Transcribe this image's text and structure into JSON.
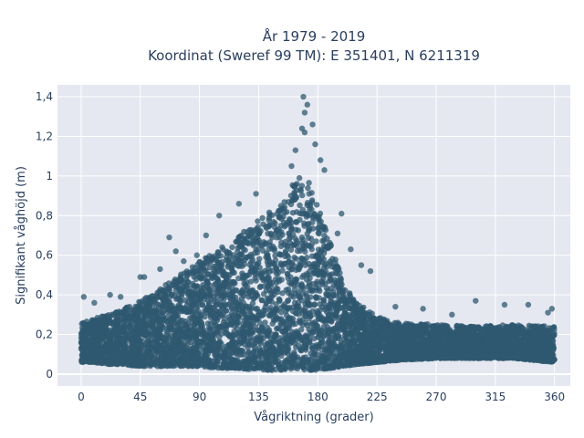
{
  "chart_data": {
    "type": "scatter",
    "title": "År 1979 - 2019",
    "subtitle": "Koordinat (Sweref 99 TM): E 351401, N 6211319",
    "xlabel": "Vågriktning (grader)",
    "ylabel": "Signifikant våghöjd (m)",
    "xlim": [
      -18,
      372
    ],
    "ylim": [
      -0.06,
      1.46
    ],
    "xticks": [
      0,
      45,
      90,
      135,
      180,
      225,
      270,
      315,
      360
    ],
    "xtick_labels": [
      "0",
      "45",
      "90",
      "135",
      "180",
      "225",
      "270",
      "315",
      "360"
    ],
    "yticks": [
      0,
      0.2,
      0.4,
      0.6,
      0.8,
      1.0,
      1.2,
      1.4
    ],
    "ytick_labels": [
      "0",
      "0,2",
      "0,4",
      "0,6",
      "0,8",
      "1",
      "1,2",
      "1,4"
    ],
    "grid": true,
    "marker_color": "#2f5870",
    "background_color": "#e5e8f0",
    "envelope": {
      "x": [
        0,
        10,
        20,
        30,
        45,
        60,
        75,
        90,
        105,
        120,
        135,
        150,
        160,
        165,
        170,
        175,
        180,
        190,
        200,
        210,
        225,
        240,
        270,
        300,
        330,
        360
      ],
      "upper": [
        0.26,
        0.28,
        0.3,
        0.33,
        0.37,
        0.43,
        0.5,
        0.57,
        0.63,
        0.7,
        0.78,
        0.85,
        0.95,
        1.0,
        1.0,
        0.95,
        0.85,
        0.65,
        0.45,
        0.36,
        0.29,
        0.26,
        0.25,
        0.24,
        0.25,
        0.24
      ],
      "lower": [
        0.06,
        0.06,
        0.05,
        0.05,
        0.04,
        0.04,
        0.04,
        0.04,
        0.03,
        0.03,
        0.02,
        0.02,
        0.02,
        0.02,
        0.02,
        0.02,
        0.02,
        0.03,
        0.04,
        0.05,
        0.06,
        0.07,
        0.08,
        0.08,
        0.08,
        0.06
      ]
    },
    "outliers": [
      [
        169,
        1.4
      ],
      [
        172,
        1.36
      ],
      [
        170,
        1.32
      ],
      [
        176,
        1.26
      ],
      [
        168,
        1.24
      ],
      [
        170,
        1.22
      ],
      [
        178,
        1.16
      ],
      [
        163,
        1.13
      ],
      [
        182,
        1.08
      ],
      [
        185,
        1.03
      ],
      [
        160,
        1.05
      ],
      [
        133,
        0.91
      ],
      [
        120,
        0.86
      ],
      [
        105,
        0.8
      ],
      [
        95,
        0.7
      ],
      [
        67,
        0.69
      ],
      [
        88,
        0.6
      ],
      [
        72,
        0.62
      ],
      [
        78,
        0.57
      ],
      [
        60,
        0.53
      ],
      [
        45,
        0.49
      ],
      [
        48,
        0.49
      ],
      [
        198,
        0.81
      ],
      [
        195,
        0.71
      ],
      [
        205,
        0.63
      ],
      [
        213,
        0.55
      ],
      [
        220,
        0.52
      ],
      [
        2,
        0.39
      ],
      [
        22,
        0.4
      ],
      [
        30,
        0.39
      ],
      [
        300,
        0.37
      ],
      [
        322,
        0.35
      ],
      [
        340,
        0.35
      ],
      [
        358,
        0.33
      ],
      [
        355,
        0.31
      ],
      [
        10,
        0.36
      ],
      [
        239,
        0.34
      ],
      [
        260,
        0.33
      ],
      [
        282,
        0.3
      ]
    ]
  }
}
